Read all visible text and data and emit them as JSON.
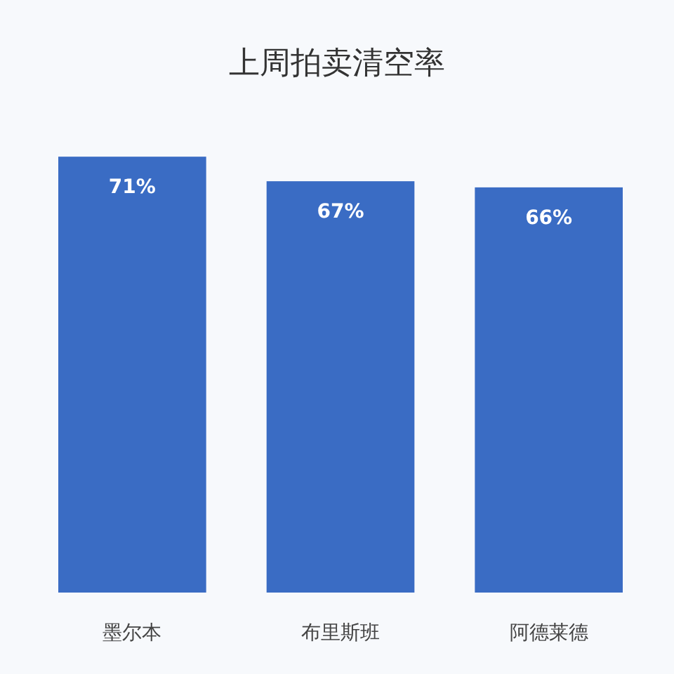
{
  "chart_data": {
    "type": "bar",
    "title": "上周拍卖清空率",
    "categories": [
      "墨尔本",
      "布里斯班",
      "阿德莱德"
    ],
    "values": [
      71,
      67,
      66
    ],
    "value_labels": [
      "71%",
      "67%",
      "66%"
    ],
    "color": "#3a6cc4"
  }
}
